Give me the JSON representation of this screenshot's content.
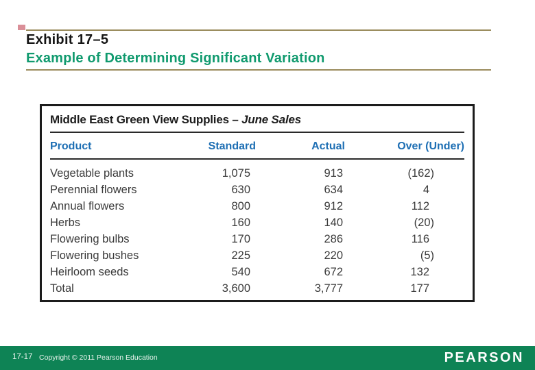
{
  "slide": {
    "exhibit_label": "Exhibit 17–5",
    "subtitle": "Example of Determining Significant Variation"
  },
  "table": {
    "title_main": "Middle East Green View Supplies – ",
    "title_emphasis": "June Sales",
    "columns": [
      "Product",
      "Standard",
      "Actual",
      "Over (Under)"
    ],
    "rows": [
      {
        "product": "Vegetable plants",
        "standard": "1,075",
        "actual": "913",
        "over_under": "(162)"
      },
      {
        "product": "Perennial flowers",
        "standard": "630",
        "actual": "634",
        "over_under": "4"
      },
      {
        "product": "Annual flowers",
        "standard": "800",
        "actual": "912",
        "over_under": "112"
      },
      {
        "product": "Herbs",
        "standard": "160",
        "actual": "140",
        "over_under": "(20)"
      },
      {
        "product": "Flowering bulbs",
        "standard": "170",
        "actual": "286",
        "over_under": "116"
      },
      {
        "product": "Flowering bushes",
        "standard": "225",
        "actual": "220",
        "over_under": "(5)"
      },
      {
        "product": "Heirloom seeds",
        "standard": "540",
        "actual": "672",
        "over_under": "132"
      },
      {
        "product": "Total",
        "standard": "3,600",
        "actual": "3,777",
        "over_under": "177"
      }
    ]
  },
  "footer": {
    "page_number": "17-17",
    "copyright": "Copyright © 2011 Pearson Education",
    "brand": "PEARSON"
  },
  "colors": {
    "accent_rule": "#9A8B5C",
    "accent_mark": "#DA8F98",
    "subtitle_green": "#109A6E",
    "header_blue": "#1E6FB4",
    "bar_green": "#0E8355"
  }
}
